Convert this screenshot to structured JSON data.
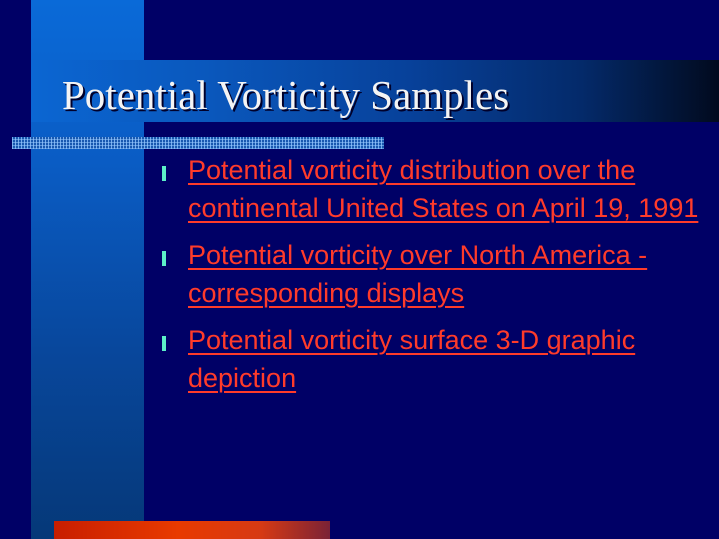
{
  "slide": {
    "title": "Potential Vorticity Samples",
    "bullets": [
      {
        "label": " Potential vorticity distribution over the continental United States on April 19, 1991"
      },
      {
        "label": "Potential vorticity over North America - corresponding displays "
      },
      {
        "label": "Potential vorticity surface 3-D graphic depiction "
      }
    ]
  },
  "colors": {
    "background": "#000066",
    "accent_blue": "#0a6ad8",
    "title_text": "#f4f4f4",
    "link_text": "#ff3b2a",
    "bullet_marker": "#5cf0c8",
    "bottom_bar": "#e83a00"
  }
}
